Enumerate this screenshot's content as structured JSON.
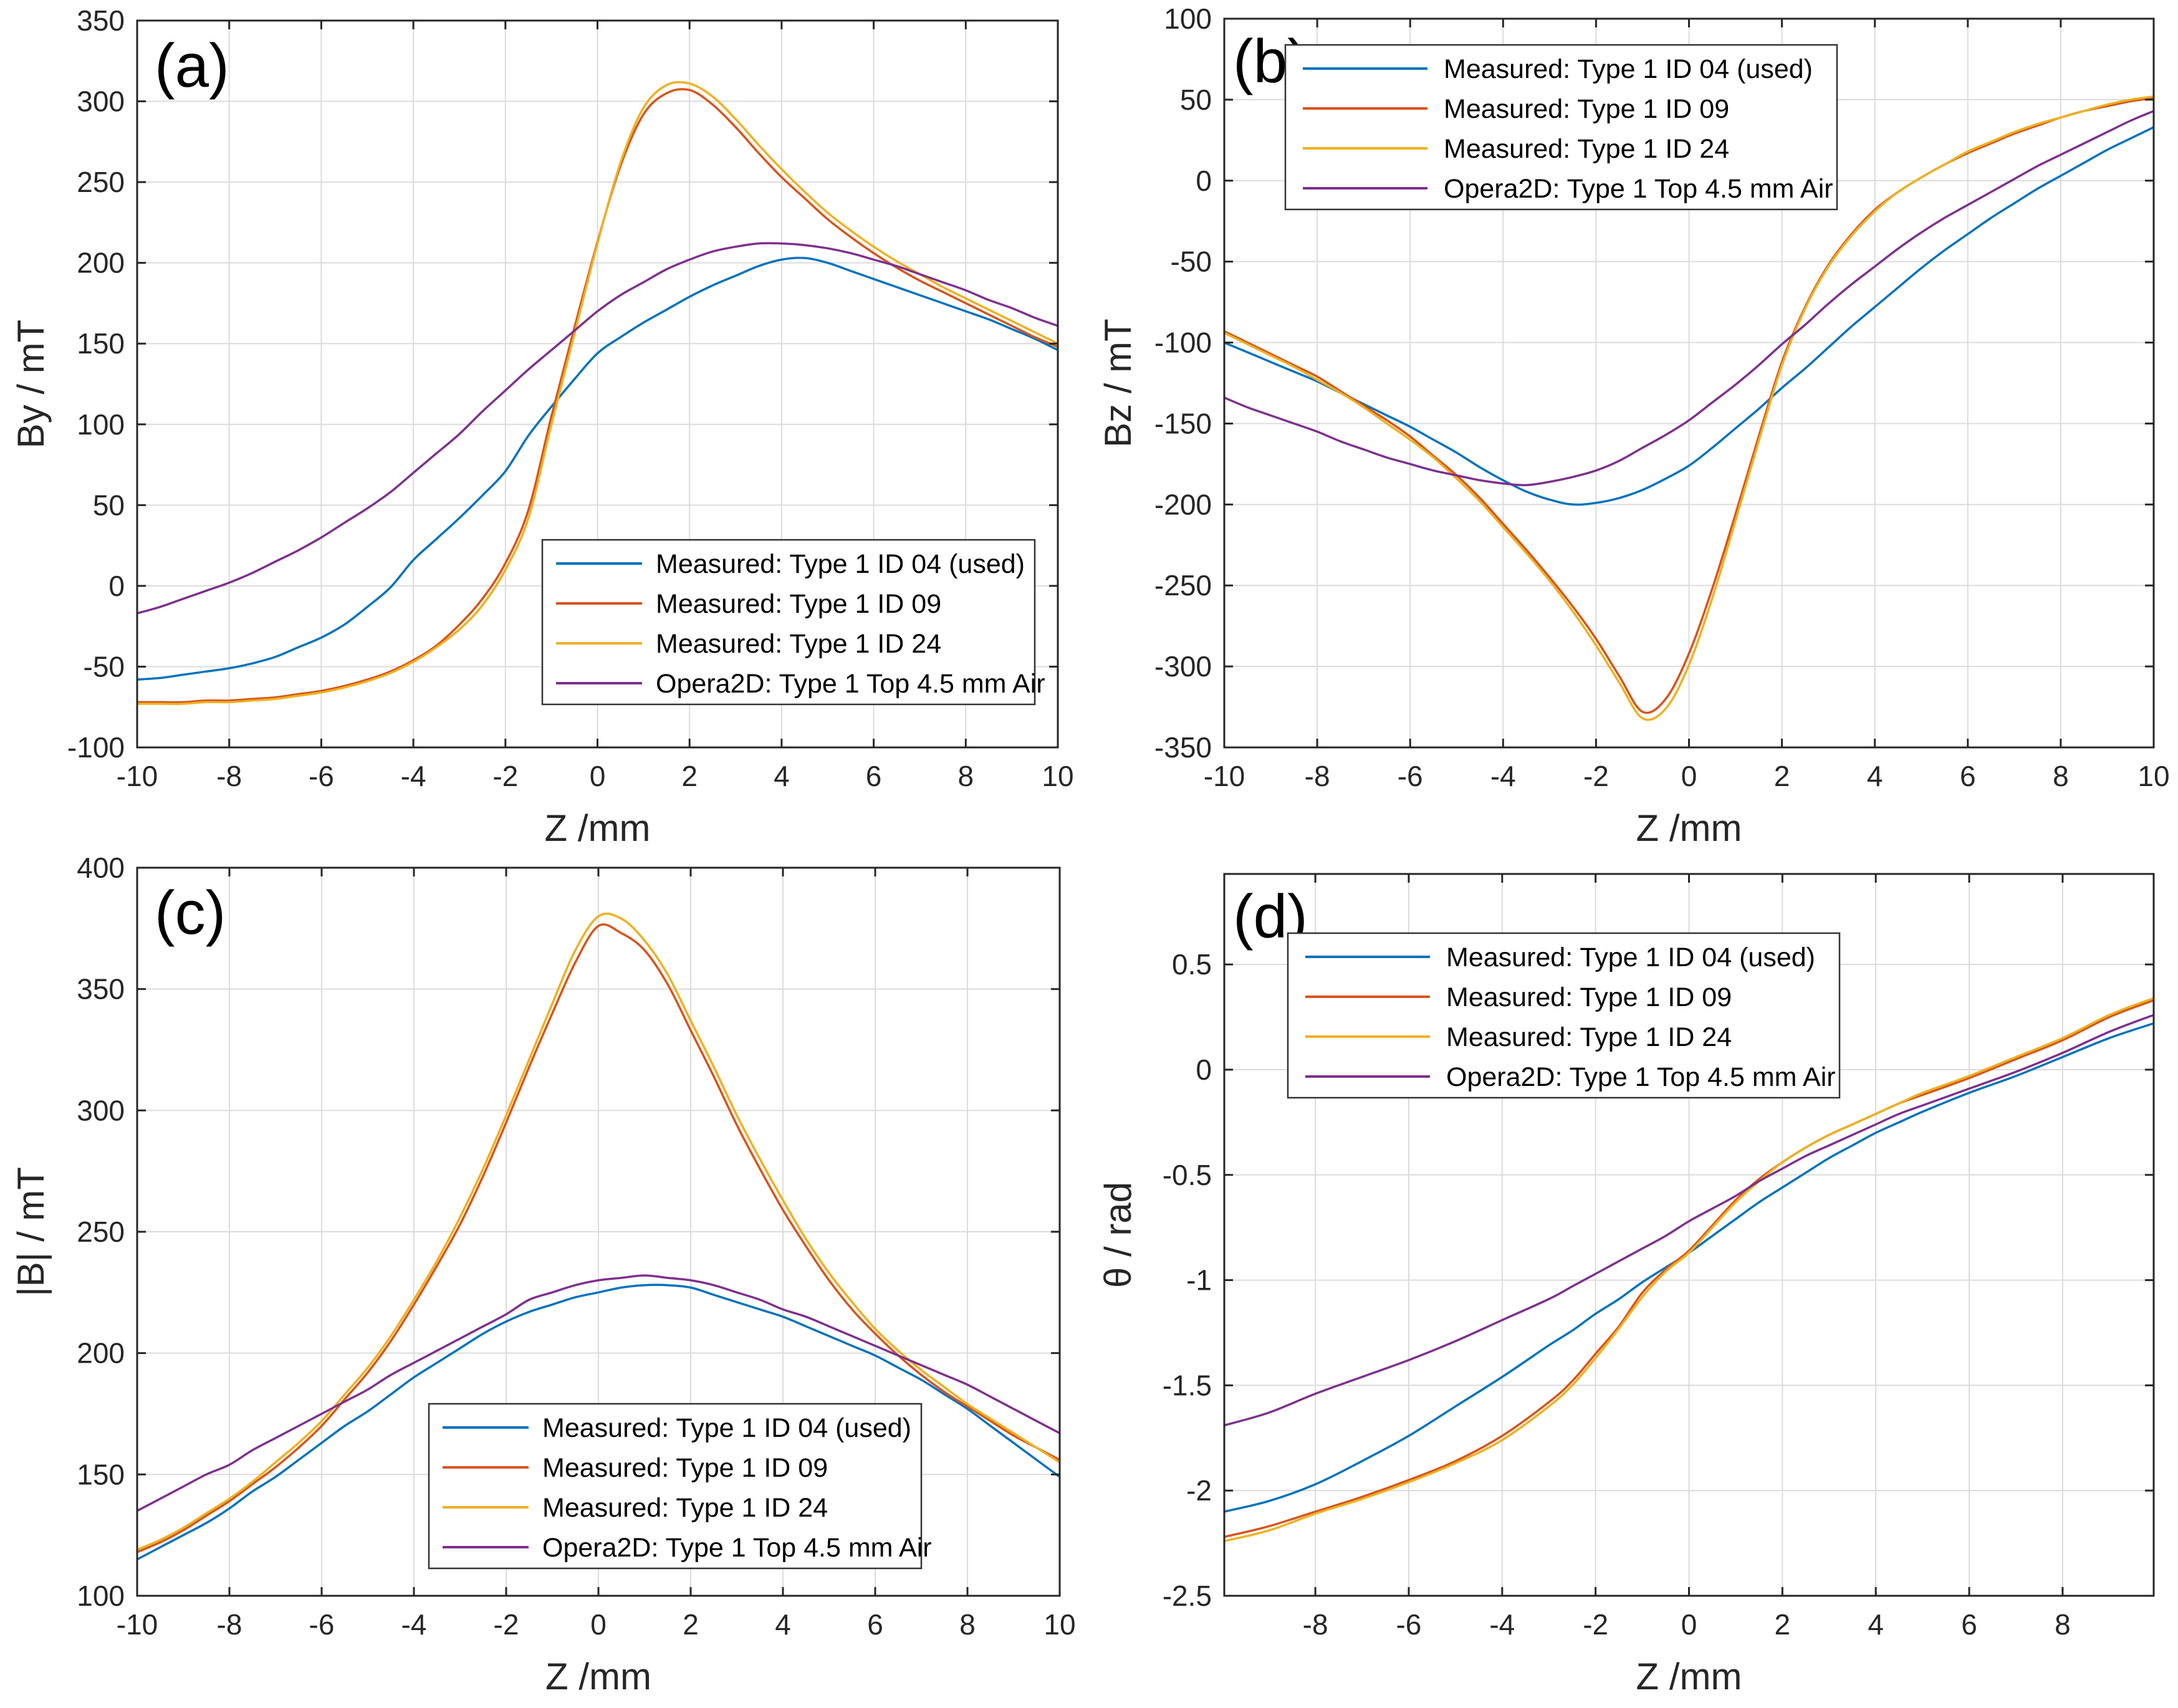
{
  "figure": {
    "background": "#ffffff",
    "axis_color": "#262626",
    "grid_color": "#dcdcdc",
    "text_color": "#262626",
    "x_axis_label": "Z /mm",
    "legend_labels": [
      "Measured: Type 1 ID 04 (used)",
      "Measured: Type 1 ID 09",
      "Measured: Type 1 ID 24",
      "Opera2D: Type 1 Top 4.5 mm Air"
    ],
    "series_colors": [
      "#0072BD",
      "#D95319",
      "#EDB120",
      "#7E2F8E"
    ]
  },
  "chart_data": [
    {
      "id": "a",
      "type": "line",
      "panel_label": "(a)",
      "xlabel": "Z /mm",
      "ylabel": "By / mT",
      "xlim": [
        -10,
        10
      ],
      "ylim": [
        -100,
        350
      ],
      "xticks": [
        -10,
        -8,
        -6,
        -4,
        -2,
        0,
        2,
        4,
        6,
        8,
        10
      ],
      "yticks": [
        -100,
        -50,
        0,
        50,
        100,
        150,
        200,
        250,
        300,
        350
      ],
      "grid": true,
      "legend_position": "inside-lower-right",
      "x": [
        -10,
        -9.5,
        -9,
        -8.5,
        -8,
        -7.5,
        -7,
        -6.5,
        -6,
        -5.5,
        -5,
        -4.5,
        -4,
        -3.5,
        -3,
        -2.5,
        -2,
        -1.5,
        -1,
        -0.5,
        0,
        0.5,
        1,
        1.5,
        2,
        2.5,
        3,
        3.5,
        4,
        4.5,
        5,
        5.5,
        6,
        6.5,
        7,
        7.5,
        8,
        8.5,
        9,
        9.5,
        10
      ],
      "series": [
        {
          "name": "Measured: Type 1 ID 04 (used)",
          "color": "#0072BD",
          "values": [
            -58,
            -57,
            -55,
            -53,
            -51,
            -48,
            -44,
            -38,
            -32,
            -24,
            -13,
            -1,
            16,
            29,
            42,
            56,
            71,
            93,
            111,
            128,
            144,
            154,
            163,
            171,
            179,
            186,
            192,
            198,
            202,
            203,
            200,
            195,
            190,
            185,
            180,
            175,
            170,
            165,
            159,
            153,
            146
          ]
        },
        {
          "name": "Measured: Type 1 ID 09",
          "color": "#D95319",
          "values": [
            -72,
            -72,
            -72,
            -71,
            -71,
            -70,
            -69,
            -67,
            -65,
            -62,
            -58,
            -53,
            -46,
            -37,
            -24,
            -8,
            14,
            47,
            105,
            160,
            213,
            260,
            292,
            305,
            307,
            298,
            284,
            268,
            253,
            240,
            227,
            216,
            206,
            197,
            189,
            182,
            175,
            168,
            161,
            154,
            148
          ]
        },
        {
          "name": "Measured: Type 1 ID 24",
          "color": "#EDB120",
          "values": [
            -73,
            -73,
            -73,
            -72,
            -72,
            -71,
            -70,
            -68,
            -66,
            -63,
            -59,
            -54,
            -47,
            -38,
            -27,
            -12,
            10,
            42,
            100,
            156,
            212,
            262,
            296,
            310,
            311,
            303,
            289,
            273,
            258,
            244,
            231,
            220,
            210,
            201,
            193,
            185,
            178,
            171,
            164,
            157,
            150
          ]
        },
        {
          "name": "Opera2D: Type 1 Top 4.5 mm Air",
          "color": "#7E2F8E",
          "values": [
            -17,
            -13,
            -8,
            -3,
            2,
            8,
            15,
            22,
            30,
            39,
            48,
            58,
            70,
            82,
            94,
            108,
            121,
            134,
            146,
            158,
            170,
            180,
            188,
            196,
            202,
            207,
            210,
            212,
            212,
            211,
            209,
            206,
            202,
            198,
            193,
            188,
            183,
            177,
            172,
            166,
            161
          ]
        }
      ]
    },
    {
      "id": "b",
      "type": "line",
      "panel_label": "(b)",
      "xlabel": "Z /mm",
      "ylabel": "Bz / mT",
      "xlim": [
        -10,
        10
      ],
      "ylim": [
        -350,
        100
      ],
      "xticks": [
        -10,
        -8,
        -6,
        -4,
        -2,
        0,
        2,
        4,
        6,
        8,
        10
      ],
      "yticks": [
        -350,
        -300,
        -250,
        -200,
        -150,
        -100,
        -50,
        0,
        50,
        100
      ],
      "grid": true,
      "legend_position": "inside-upper-left",
      "x": [
        -10,
        -9.5,
        -9,
        -8.5,
        -8,
        -7.5,
        -7,
        -6.5,
        -6,
        -5.5,
        -5,
        -4.5,
        -4,
        -3.5,
        -3,
        -2.5,
        -2,
        -1.5,
        -1,
        -0.5,
        0,
        0.5,
        1,
        1.5,
        2,
        2.5,
        3,
        3.5,
        4,
        4.5,
        5,
        5.5,
        6,
        6.5,
        7,
        7.5,
        8,
        8.5,
        9,
        9.5,
        10
      ],
      "series": [
        {
          "name": "Measured: Type 1 ID 04 (used)",
          "color": "#0072BD",
          "values": [
            -100,
            -106,
            -112,
            -118,
            -124,
            -131,
            -138,
            -145,
            -152,
            -160,
            -168,
            -177,
            -185,
            -192,
            -197,
            -200,
            -199,
            -196,
            -191,
            -184,
            -176,
            -165,
            -153,
            -141,
            -128,
            -116,
            -103,
            -90,
            -78,
            -66,
            -54,
            -43,
            -33,
            -23,
            -14,
            -5,
            3,
            11,
            19,
            26,
            33
          ]
        },
        {
          "name": "Measured: Type 1 ID 09",
          "color": "#D95319",
          "values": [
            -93,
            -100,
            -107,
            -114,
            -121,
            -130,
            -139,
            -148,
            -158,
            -170,
            -182,
            -196,
            -212,
            -228,
            -245,
            -263,
            -283,
            -306,
            -328,
            -320,
            -292,
            -252,
            -206,
            -158,
            -112,
            -78,
            -52,
            -33,
            -18,
            -7,
            2,
            10,
            17,
            23,
            29,
            34,
            39,
            43,
            46,
            49,
            51
          ]
        },
        {
          "name": "Measured: Type 1 ID 24",
          "color": "#EDB120",
          "values": [
            -94,
            -101,
            -108,
            -115,
            -123,
            -131,
            -140,
            -150,
            -160,
            -171,
            -184,
            -198,
            -214,
            -230,
            -247,
            -266,
            -287,
            -310,
            -332,
            -326,
            -299,
            -258,
            -210,
            -161,
            -114,
            -79,
            -53,
            -34,
            -19,
            -7,
            2,
            10,
            18,
            24,
            30,
            35,
            39,
            43,
            47,
            50,
            52
          ]
        },
        {
          "name": "Opera2D: Type 1 Top 4.5 mm Air",
          "color": "#7E2F8E",
          "values": [
            -134,
            -140,
            -145,
            -150,
            -155,
            -161,
            -166,
            -171,
            -175,
            -179,
            -182,
            -185,
            -187,
            -188,
            -186,
            -183,
            -179,
            -173,
            -165,
            -157,
            -148,
            -137,
            -126,
            -114,
            -101,
            -89,
            -76,
            -64,
            -53,
            -42,
            -32,
            -23,
            -15,
            -7,
            1,
            9,
            16,
            23,
            30,
            37,
            43
          ]
        }
      ]
    },
    {
      "id": "c",
      "type": "line",
      "panel_label": "(c)",
      "xlabel": "Z /mm",
      "ylabel": "|B| / mT",
      "xlim": [
        -10,
        10
      ],
      "ylim": [
        100,
        400
      ],
      "xticks": [
        -10,
        -8,
        -6,
        -4,
        -2,
        0,
        2,
        4,
        6,
        8,
        10
      ],
      "yticks": [
        100,
        150,
        200,
        250,
        300,
        350,
        400
      ],
      "grid": true,
      "legend_position": "inside-lower-middle",
      "x": [
        -10,
        -9.5,
        -9,
        -8.5,
        -8,
        -7.5,
        -7,
        -6.5,
        -6,
        -5.5,
        -5,
        -4.5,
        -4,
        -3.5,
        -3,
        -2.5,
        -2,
        -1.5,
        -1,
        -0.5,
        0,
        0.5,
        1,
        1.5,
        2,
        2.5,
        3,
        3.5,
        4,
        4.5,
        5,
        5.5,
        6,
        6.5,
        7,
        7.5,
        8,
        8.5,
        9,
        9.5,
        10
      ],
      "series": [
        {
          "name": "Measured: Type 1 ID 04 (used)",
          "color": "#0072BD",
          "values": [
            115,
            120,
            125,
            130,
            136,
            143,
            149,
            156,
            163,
            170,
            176,
            183,
            190,
            196,
            202,
            208,
            213,
            217,
            220,
            223,
            225,
            227,
            228,
            228,
            227,
            224,
            221,
            218,
            215,
            211,
            207,
            203,
            199,
            194,
            189,
            183,
            177,
            170,
            163,
            156,
            149
          ]
        },
        {
          "name": "Measured: Type 1 ID 09",
          "color": "#D95319",
          "values": [
            118,
            122,
            127,
            133,
            139,
            146,
            153,
            161,
            170,
            181,
            192,
            205,
            220,
            236,
            253,
            273,
            295,
            318,
            340,
            361,
            376,
            373,
            366,
            352,
            333,
            314,
            294,
            276,
            259,
            244,
            230,
            218,
            208,
            199,
            191,
            184,
            178,
            172,
            166,
            161,
            156
          ]
        },
        {
          "name": "Measured: Type 1 ID 24",
          "color": "#EDB120",
          "values": [
            119,
            123,
            128,
            134,
            140,
            147,
            155,
            163,
            172,
            183,
            194,
            207,
            222,
            238,
            256,
            276,
            298,
            321,
            344,
            366,
            380,
            379,
            370,
            356,
            337,
            318,
            298,
            280,
            263,
            247,
            233,
            221,
            210,
            201,
            193,
            186,
            179,
            173,
            167,
            161,
            155
          ]
        },
        {
          "name": "Opera2D: Type 1 Top 4.5 mm Air",
          "color": "#7E2F8E",
          "values": [
            135,
            140,
            145,
            150,
            154,
            160,
            165,
            170,
            175,
            180,
            185,
            191,
            196,
            201,
            206,
            211,
            216,
            222,
            225,
            228,
            230,
            231,
            232,
            231,
            230,
            228,
            225,
            222,
            218,
            215,
            211,
            207,
            203,
            199,
            195,
            191,
            187,
            182,
            177,
            172,
            167
          ]
        }
      ]
    },
    {
      "id": "d",
      "type": "line",
      "panel_label": "(d)",
      "xlabel": "Z /mm",
      "ylabel": "θ / rad",
      "xlim": [
        -9.95,
        9.95
      ],
      "ylim": [
        -2.5,
        0.93
      ],
      "xticks": [
        -8,
        -6,
        -4,
        -2,
        0,
        2,
        4,
        6,
        8
      ],
      "yticks": [
        -2.5,
        -2,
        -1.5,
        -1,
        -0.5,
        0,
        0.5
      ],
      "grid": true,
      "legend_position": "inside-upper-left",
      "x": [
        -9.95,
        -9,
        -8,
        -7,
        -6,
        -5,
        -4,
        -3,
        -2.5,
        -2,
        -1.5,
        -1,
        -0.5,
        0,
        0.5,
        1,
        1.5,
        2,
        2.5,
        3,
        3.5,
        4,
        4.5,
        5,
        6,
        7,
        8,
        9,
        9.95
      ],
      "series": [
        {
          "name": "Measured: Type 1 ID 04 (used)",
          "color": "#0072BD",
          "values": [
            -2.1,
            -2.05,
            -1.97,
            -1.86,
            -1.74,
            -1.6,
            -1.46,
            -1.31,
            -1.24,
            -1.16,
            -1.09,
            -1.01,
            -0.94,
            -0.87,
            -0.79,
            -0.71,
            -0.63,
            -0.56,
            -0.49,
            -0.42,
            -0.36,
            -0.3,
            -0.25,
            -0.2,
            -0.11,
            -0.03,
            0.06,
            0.15,
            0.22
          ]
        },
        {
          "name": "Measured: Type 1 ID 09",
          "color": "#D95319",
          "values": [
            -2.22,
            -2.17,
            -2.1,
            -2.03,
            -1.95,
            -1.86,
            -1.74,
            -1.58,
            -1.48,
            -1.35,
            -1.22,
            -1.06,
            -0.95,
            -0.86,
            -0.74,
            -0.62,
            -0.52,
            -0.44,
            -0.37,
            -0.31,
            -0.26,
            -0.21,
            -0.16,
            -0.12,
            -0.04,
            0.05,
            0.14,
            0.25,
            0.33
          ]
        },
        {
          "name": "Measured: Type 1 ID 24",
          "color": "#EDB120",
          "values": [
            -2.24,
            -2.19,
            -2.11,
            -2.04,
            -1.96,
            -1.87,
            -1.76,
            -1.6,
            -1.5,
            -1.37,
            -1.23,
            -1.08,
            -0.96,
            -0.87,
            -0.75,
            -0.63,
            -0.53,
            -0.44,
            -0.37,
            -0.31,
            -0.26,
            -0.21,
            -0.16,
            -0.11,
            -0.03,
            0.06,
            0.15,
            0.26,
            0.34
          ]
        },
        {
          "name": "Opera2D: Type 1 Top 4.5 mm Air",
          "color": "#7E2F8E",
          "values": [
            -1.69,
            -1.63,
            -1.54,
            -1.46,
            -1.38,
            -1.29,
            -1.19,
            -1.09,
            -1.03,
            -0.97,
            -0.91,
            -0.85,
            -0.79,
            -0.72,
            -0.66,
            -0.6,
            -0.53,
            -0.47,
            -0.41,
            -0.36,
            -0.31,
            -0.26,
            -0.21,
            -0.17,
            -0.09,
            -0.01,
            0.08,
            0.18,
            0.26
          ]
        }
      ]
    }
  ]
}
